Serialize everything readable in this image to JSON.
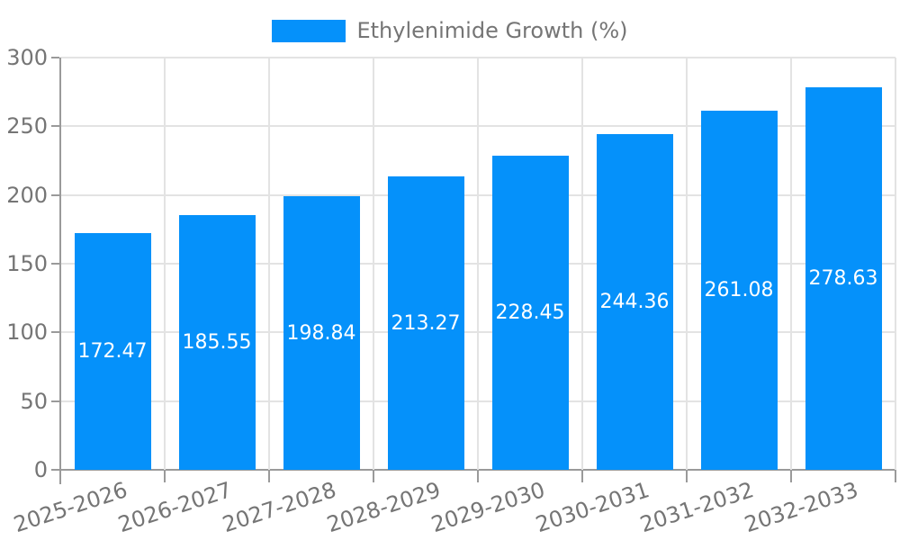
{
  "legend": {
    "label": "Ethylenimide Growth (%)"
  },
  "colors": {
    "bar": "#0591fa",
    "grid": "#e3e3e3",
    "axis": "#9a9a9a",
    "tick_text": "#757575",
    "value_label": "#ffffff",
    "background": "#ffffff"
  },
  "chart_data": {
    "type": "bar",
    "title": "Ethylenimide Growth (%)",
    "categories": [
      "2025-2026",
      "2026-2027",
      "2027-2028",
      "2028-2029",
      "2029-2030",
      "2030-2031",
      "2031-2032",
      "2032-2033"
    ],
    "values": [
      172.47,
      185.55,
      198.84,
      213.27,
      228.45,
      244.36,
      261.08,
      278.63
    ],
    "value_labels": [
      "172.47",
      "185.55",
      "198.84",
      "213.27",
      "228.45",
      "244.36",
      "261.08",
      "278.63"
    ],
    "xlabel": "",
    "ylabel": "",
    "ylim": [
      0,
      300
    ],
    "yticks": [
      0,
      50,
      100,
      150,
      200,
      250,
      300
    ],
    "grid": true,
    "legend_position": "top",
    "bar_label_position": "center-inside",
    "x_label_rotation_deg": -18
  }
}
